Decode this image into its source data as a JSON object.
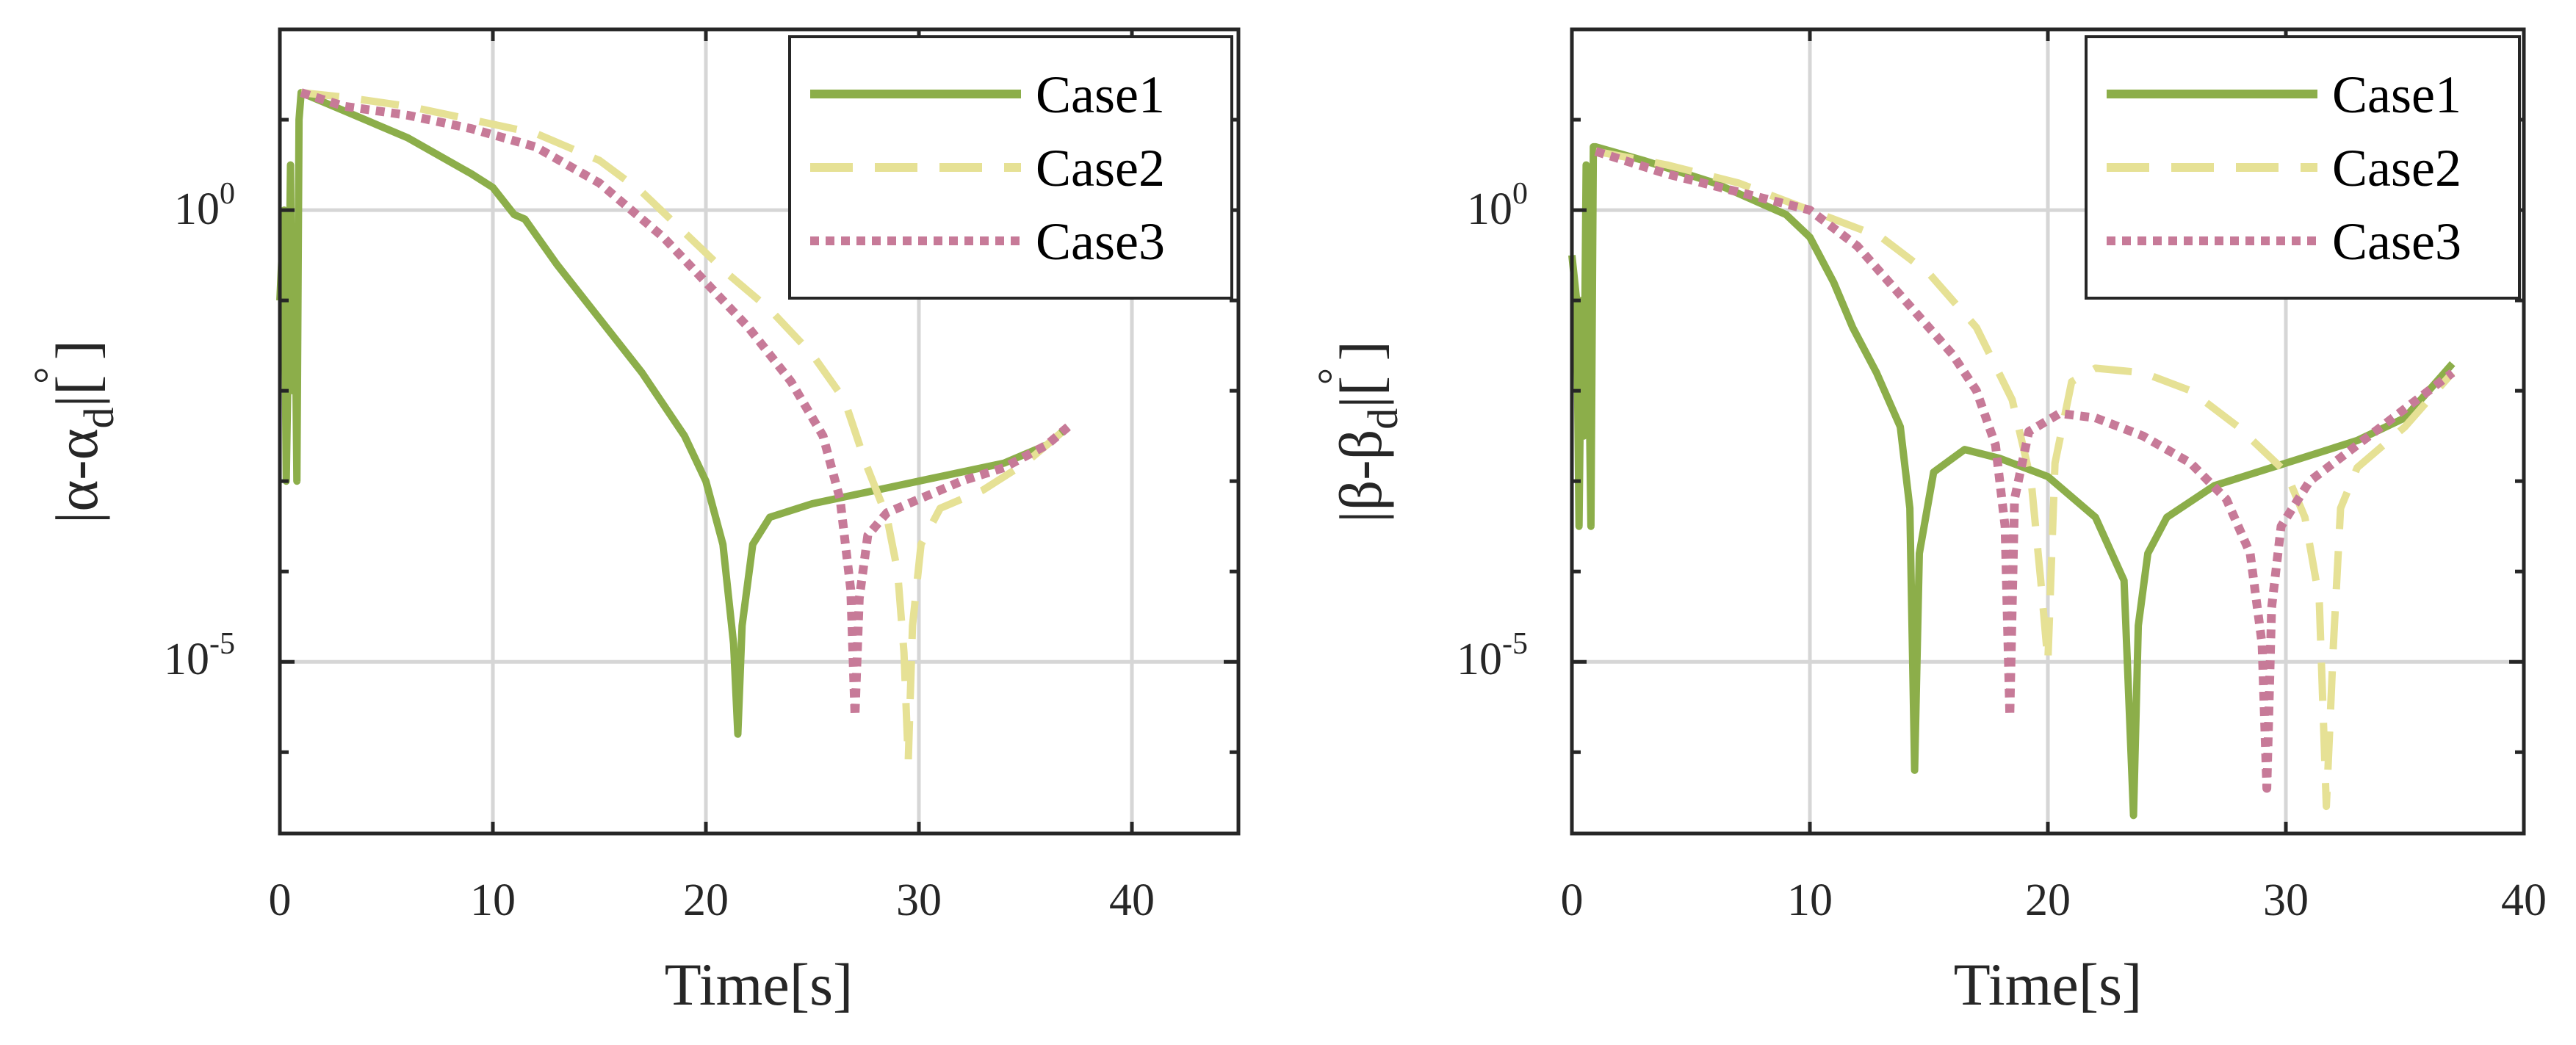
{
  "colors": {
    "case1": "#8cae4a",
    "case2": "#e6e195",
    "case3": "#c77a98",
    "axis": "#262626",
    "grid": "#d6d6d6"
  },
  "chart_data": [
    {
      "type": "line",
      "yscale": "log",
      "xlabel": "Time[s]",
      "ylabel": "|α-αd|[°]",
      "ylabel_parts": {
        "main": "|α-α",
        "sub": "d",
        "tail": "|[ ]",
        "degree": "°"
      },
      "xlim": [
        0,
        45
      ],
      "ylim_log10": [
        -6.9,
        2.0
      ],
      "xticks": [
        0,
        10,
        20,
        30,
        40
      ],
      "xtick_labels": [
        "0",
        "10",
        "20",
        "30",
        "40"
      ],
      "yticks_log10": [
        0,
        -5
      ],
      "ytick_labels": [
        {
          "base": "10",
          "exp": "0"
        },
        {
          "base": "10",
          "exp": "-5"
        }
      ],
      "grid": true,
      "legend": {
        "position": "top-right",
        "entries": [
          "Case1",
          "Case2",
          "Case3"
        ]
      },
      "series": [
        {
          "name": "Case1",
          "style": "solid",
          "x": [
            0.0,
            0.2,
            0.3,
            0.4,
            0.5,
            0.6,
            0.7,
            0.8,
            0.9,
            1.0,
            3,
            6,
            9,
            10,
            11,
            11.5,
            13,
            15,
            17,
            19,
            20,
            20.8,
            21.3,
            21.5,
            21.7,
            22.2,
            23,
            25,
            28,
            31,
            34,
            36,
            37
          ],
          "y": [
            -1.0,
            0.0,
            -3.0,
            -1.5,
            0.5,
            -2.0,
            -0.5,
            -3.0,
            1.0,
            1.3,
            1.1,
            0.8,
            0.4,
            0.25,
            -0.05,
            -0.1,
            -0.6,
            -1.2,
            -1.8,
            -2.5,
            -3.0,
            -3.7,
            -4.8,
            -5.8,
            -4.6,
            -3.7,
            -3.4,
            -3.25,
            -3.1,
            -2.95,
            -2.8,
            -2.6,
            -2.4
          ]
        },
        {
          "name": "Case2",
          "style": "dashed",
          "x": [
            1.0,
            3,
            6,
            9,
            12,
            15,
            17,
            19,
            21,
            23,
            25,
            26.5,
            27.5,
            28.5,
            29.0,
            29.3,
            29.5,
            29.7,
            30.1,
            31,
            33,
            35,
            37
          ],
          "y": [
            1.3,
            1.25,
            1.15,
            1.0,
            0.85,
            0.55,
            0.2,
            -0.25,
            -0.7,
            -1.1,
            -1.6,
            -2.1,
            -2.8,
            -3.4,
            -4.0,
            -4.9,
            -6.1,
            -4.6,
            -3.7,
            -3.3,
            -3.1,
            -2.8,
            -2.4
          ]
        },
        {
          "name": "Case3",
          "style": "dotted",
          "x": [
            1.0,
            3,
            6,
            9,
            12,
            15,
            18,
            20,
            22,
            24,
            25.5,
            26.3,
            26.8,
            27.0,
            27.2,
            27.6,
            28.5,
            30,
            32,
            34,
            36,
            37
          ],
          "y": [
            1.3,
            1.15,
            1.05,
            0.9,
            0.7,
            0.3,
            -0.3,
            -0.8,
            -1.3,
            -1.9,
            -2.5,
            -3.2,
            -4.2,
            -5.6,
            -4.3,
            -3.6,
            -3.35,
            -3.2,
            -3.0,
            -2.85,
            -2.6,
            -2.4
          ]
        }
      ]
    },
    {
      "type": "line",
      "yscale": "log",
      "xlabel": "Time[s]",
      "ylabel": "|β-βd|[°]",
      "ylabel_parts": {
        "main": "|β-β",
        "sub": "d",
        "tail": "|[ ]",
        "degree": "°"
      },
      "xlim": [
        0,
        40
      ],
      "ylim_log10": [
        -6.9,
        2.0
      ],
      "xticks": [
        0,
        10,
        20,
        30,
        40
      ],
      "xtick_labels": [
        "0",
        "10",
        "20",
        "30",
        "40"
      ],
      "yticks_log10": [
        0,
        -5
      ],
      "ytick_labels": [
        {
          "base": "10",
          "exp": "0"
        },
        {
          "base": "10",
          "exp": "-5"
        }
      ],
      "grid": true,
      "legend": {
        "position": "top-right",
        "entries": [
          "Case1",
          "Case2",
          "Case3"
        ]
      },
      "series": [
        {
          "name": "Case1",
          "style": "solid",
          "x": [
            0.0,
            0.2,
            0.3,
            0.4,
            0.5,
            0.6,
            0.7,
            0.8,
            0.9,
            1.0,
            3,
            6,
            9,
            10,
            11,
            11.8,
            12.8,
            13.8,
            14.2,
            14.4,
            14.6,
            15.2,
            16.5,
            18,
            20,
            22,
            23.2,
            23.6,
            23.8,
            24.2,
            25,
            27,
            30,
            33,
            35,
            37
          ],
          "y": [
            -0.5,
            -1.0,
            -3.5,
            -1.0,
            -2.5,
            0.5,
            -1.5,
            -3.5,
            0.7,
            0.7,
            0.55,
            0.3,
            -0.05,
            -0.3,
            -0.8,
            -1.3,
            -1.8,
            -2.4,
            -3.3,
            -6.2,
            -3.8,
            -2.9,
            -2.65,
            -2.75,
            -2.95,
            -3.4,
            -4.1,
            -6.7,
            -4.6,
            -3.8,
            -3.4,
            -3.05,
            -2.8,
            -2.55,
            -2.3,
            -1.7
          ]
        },
        {
          "name": "Case2",
          "style": "dashed",
          "x": [
            1.0,
            4,
            7,
            10,
            13,
            15,
            17,
            18.5,
            19.3,
            19.7,
            20.0,
            20.3,
            21,
            22,
            24,
            26,
            28,
            30,
            30.8,
            31.4,
            31.7,
            32.0,
            32.3,
            33,
            35,
            37
          ],
          "y": [
            0.65,
            0.5,
            0.3,
            0.0,
            -0.3,
            -0.7,
            -1.3,
            -2.1,
            -3.0,
            -4.1,
            -5.0,
            -2.8,
            -1.9,
            -1.75,
            -1.8,
            -2.0,
            -2.4,
            -2.9,
            -3.4,
            -4.3,
            -6.6,
            -4.8,
            -3.3,
            -2.85,
            -2.4,
            -1.8
          ]
        },
        {
          "name": "Case3",
          "style": "dotted",
          "x": [
            1.0,
            4,
            7,
            10,
            12,
            14,
            16,
            17,
            17.8,
            18.2,
            18.4,
            18.6,
            19.2,
            20.5,
            22,
            24,
            26,
            27.5,
            28.5,
            29.0,
            29.2,
            29.4,
            29.8,
            31,
            33,
            35,
            37
          ],
          "y": [
            0.65,
            0.4,
            0.2,
            0.0,
            -0.4,
            -1.0,
            -1.6,
            -2.0,
            -2.6,
            -3.5,
            -5.6,
            -3.2,
            -2.45,
            -2.25,
            -2.3,
            -2.5,
            -2.8,
            -3.2,
            -3.8,
            -4.8,
            -6.4,
            -4.4,
            -3.5,
            -3.0,
            -2.6,
            -2.2,
            -1.8
          ]
        }
      ]
    }
  ]
}
